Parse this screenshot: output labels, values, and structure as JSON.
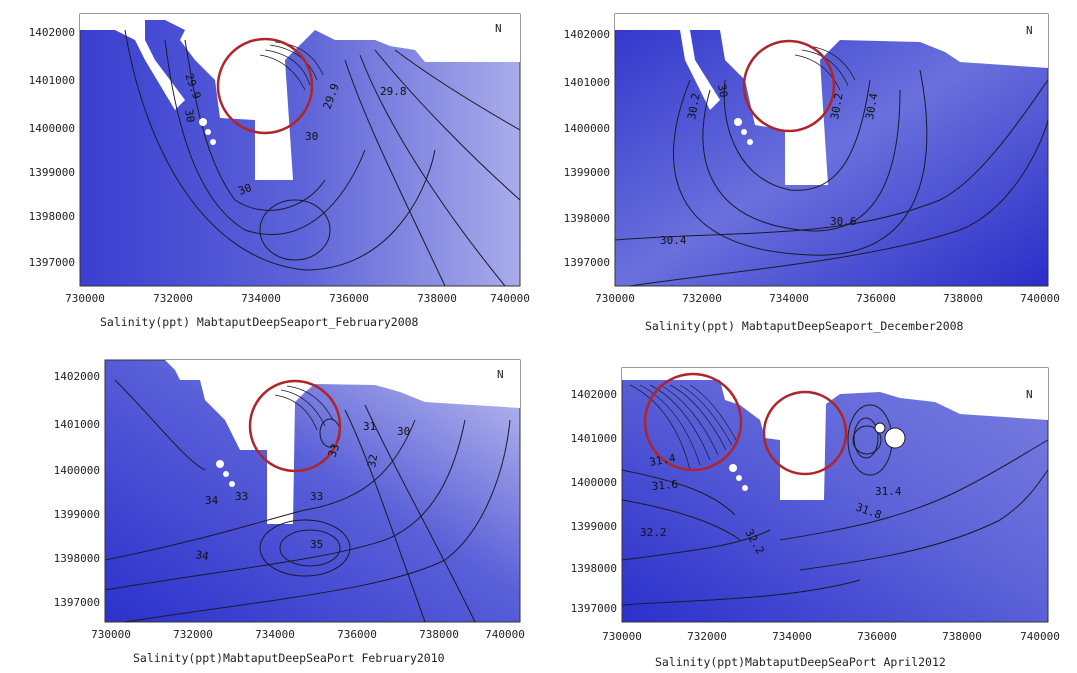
{
  "colors": {
    "deep": "#2b2fd4",
    "mid": "#5a60d6",
    "light": "#b3b6ea",
    "land": "#ffffff",
    "circle": "#b0242a",
    "line": "#1a1a2a"
  },
  "axes": {
    "y_ticks": [
      "1402000",
      "1401000",
      "1400000",
      "1399000",
      "1398000",
      "1397000"
    ],
    "x_ticks": [
      "730000",
      "732000",
      "734000",
      "736000",
      "738000",
      "740000"
    ]
  },
  "north_symbol": "N",
  "panels": [
    {
      "caption": "Salinity(ppt) MabtaputDeepSeaport_February2008",
      "contour_labels": [
        "29.9",
        "29.8",
        "30",
        "29.9",
        "29.8",
        "30",
        "30",
        "30"
      ]
    },
    {
      "caption": "Salinity(ppt) MabtaputDeepSeaport_December2008",
      "contour_labels": [
        "30.2",
        "30",
        "30.2",
        "30.4",
        "30.6",
        "30.4"
      ]
    },
    {
      "caption": "Salinity(ppt)MabtaputDeepSeaPort February2010",
      "contour_labels": [
        "31",
        "30",
        "33",
        "32",
        "33",
        "34",
        "35",
        "34",
        "33"
      ]
    },
    {
      "caption": "Salinity(ppt)MabtaputDeepSeaPort April2012",
      "contour_labels": [
        "31.4",
        "31.6",
        "32.2",
        "32.2",
        "31.8",
        "31.4"
      ]
    }
  ]
}
